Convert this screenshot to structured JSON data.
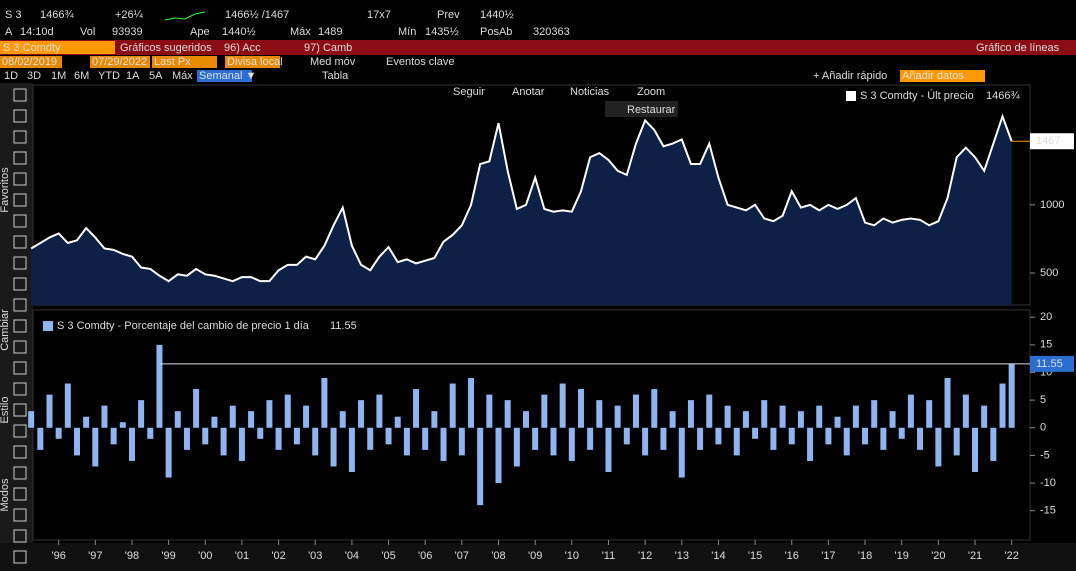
{
  "header": {
    "row1": [
      "S 3",
      "1466¾",
      "+26¼",
      "1466½ /1467",
      "17x7",
      "Prev",
      "1440½"
    ],
    "row2": [
      "A",
      "14:10d",
      "Vol",
      "93939",
      "Ape",
      "1440½",
      "Máx",
      "1489",
      "Mín",
      "1435½",
      "PosAb",
      "320363"
    ],
    "menu": [
      "S 3 Comdty",
      "Gráficos sugeridos",
      "96) Acc",
      "97) Camb",
      "Gráfico de líneas"
    ],
    "settings": [
      "08/02/2019",
      "07/29/2022",
      "Last Px",
      "Divisa local",
      "Med móv",
      "Eventos clave"
    ],
    "periods": [
      "1D",
      "3D",
      "1M",
      "6M",
      "YTD",
      "1A",
      "5A",
      "Máx",
      "Semanal ▼",
      "Tabla",
      "+ Añadir rápido",
      "Añadir datos"
    ],
    "tools": [
      "Seguir",
      "Anotar",
      "Noticias",
      "Zoom",
      "Restaurar"
    ],
    "side": [
      "Favoritos",
      "Cambiar",
      "Estilo",
      "Modos"
    ]
  },
  "chart_data": [
    {
      "type": "line",
      "legend_value": "1466¾",
      "xlim": [
        1995.8,
        2023
      ],
      "ylim": [
        265,
        1880
      ],
      "yticks": [
        500,
        1000
      ],
      "x": [
        1995.75,
        1996,
        1996.25,
        1996.5,
        1996.75,
        1997,
        1997.25,
        1997.5,
        1997.75,
        1998,
        1998.25,
        1998.5,
        1998.75,
        1999,
        1999.25,
        1999.5,
        1999.75,
        2000,
        2000.25,
        2000.5,
        2000.75,
        2001,
        2001.25,
        2001.5,
        2001.75,
        2002,
        2002.25,
        2002.5,
        2002.75,
        2003,
        2003.25,
        2003.5,
        2003.75,
        2004,
        2004.25,
        2004.5,
        2004.75,
        2005,
        2005.25,
        2005.5,
        2005.75,
        2006,
        2006.25,
        2006.5,
        2006.75,
        2007,
        2007.25,
        2007.5,
        2007.75,
        2008,
        2008.25,
        2008.5,
        2008.75,
        2009,
        2009.25,
        2009.5,
        2009.75,
        2010,
        2010.25,
        2010.5,
        2010.75,
        2011,
        2011.25,
        2011.5,
        2011.75,
        2012,
        2012.25,
        2012.5,
        2012.75,
        2013,
        2013.25,
        2013.5,
        2013.75,
        2014,
        2014.25,
        2014.5,
        2014.75,
        2015,
        2015.25,
        2015.5,
        2015.75,
        2016,
        2016.25,
        2016.5,
        2016.75,
        2017,
        2017.25,
        2017.5,
        2017.75,
        2018,
        2018.25,
        2018.5,
        2018.75,
        2019,
        2019.25,
        2019.5,
        2019.75,
        2020,
        2020.25,
        2020.5,
        2020.75,
        2021,
        2021.25,
        2021.5,
        2021.75,
        2022,
        2022.25,
        2022.5
      ],
      "series": [
        {
          "name": "S 3 Comdty - Últ precio",
          "color": "#ffffff",
          "values": [
            680,
            720,
            760,
            790,
            720,
            740,
            830,
            760,
            680,
            670,
            640,
            620,
            540,
            530,
            480,
            440,
            490,
            480,
            530,
            490,
            480,
            460,
            440,
            470,
            470,
            440,
            440,
            520,
            560,
            560,
            620,
            600,
            700,
            850,
            980,
            700,
            560,
            520,
            620,
            690,
            580,
            600,
            570,
            590,
            610,
            730,
            780,
            850,
            1000,
            1300,
            1320,
            1600,
            1250,
            970,
            1000,
            1200,
            970,
            950,
            960,
            950,
            1100,
            1350,
            1380,
            1330,
            1250,
            1220,
            1450,
            1620,
            1550,
            1430,
            1450,
            1480,
            1300,
            1300,
            1450,
            1200,
            1000,
            980,
            960,
            1000,
            900,
            880,
            920,
            1100,
            980,
            1000,
            960,
            1000,
            970,
            1000,
            1050,
            870,
            850,
            900,
            870,
            890,
            900,
            890,
            850,
            880,
            1050,
            1350,
            1420,
            1350,
            1250,
            1450,
            1650,
            1467
          ]
        }
      ]
    },
    {
      "type": "bar",
      "xlim": [
        1995.8,
        2023
      ],
      "ylim": [
        -20.3,
        21.3
      ],
      "yticks": [
        -15,
        -10,
        -5,
        0,
        5,
        10,
        15,
        20
      ],
      "xticks": [
        {
          "value": 1996.5,
          "label": "'96"
        },
        {
          "value": 1997.5,
          "label": "'97"
        },
        {
          "value": 1998.5,
          "label": "'98"
        },
        {
          "value": 1999.5,
          "label": "'99"
        },
        {
          "value": 2000.5,
          "label": "'00"
        },
        {
          "value": 2001.5,
          "label": "'01"
        },
        {
          "value": 2002.5,
          "label": "'02"
        },
        {
          "value": 2003.5,
          "label": "'03"
        },
        {
          "value": 2004.5,
          "label": "'04"
        },
        {
          "value": 2005.5,
          "label": "'05"
        },
        {
          "value": 2006.5,
          "label": "'06"
        },
        {
          "value": 2007.5,
          "label": "'07"
        },
        {
          "value": 2008.5,
          "label": "'08"
        },
        {
          "value": 2009.5,
          "label": "'09"
        },
        {
          "value": 2010.5,
          "label": "'10"
        },
        {
          "value": 2011.5,
          "label": "'11"
        },
        {
          "value": 2012.5,
          "label": "'12"
        },
        {
          "value": 2013.5,
          "label": "'13"
        },
        {
          "value": 2014.5,
          "label": "'14"
        },
        {
          "value": 2015.5,
          "label": "'15"
        },
        {
          "value": 2016.5,
          "label": "'16"
        },
        {
          "value": 2017.5,
          "label": "'17"
        },
        {
          "value": 2018.5,
          "label": "'18"
        },
        {
          "value": 2019.5,
          "label": "'19"
        },
        {
          "value": 2020.5,
          "label": "'20"
        },
        {
          "value": 2021.5,
          "label": "'21"
        },
        {
          "value": 2022.5,
          "label": "'22"
        }
      ],
      "x": [
        1995.75,
        1996,
        1996.25,
        1996.5,
        1996.75,
        1997,
        1997.25,
        1997.5,
        1997.75,
        1998,
        1998.25,
        1998.5,
        1998.75,
        1999,
        1999.25,
        1999.5,
        1999.75,
        2000,
        2000.25,
        2000.5,
        2000.75,
        2001,
        2001.25,
        2001.5,
        2001.75,
        2002,
        2002.25,
        2002.5,
        2002.75,
        2003,
        2003.25,
        2003.5,
        2003.75,
        2004,
        2004.25,
        2004.5,
        2004.75,
        2005,
        2005.25,
        2005.5,
        2005.75,
        2006,
        2006.25,
        2006.5,
        2006.75,
        2007,
        2007.25,
        2007.5,
        2007.75,
        2008,
        2008.25,
        2008.5,
        2008.75,
        2009,
        2009.25,
        2009.5,
        2009.75,
        2010,
        2010.25,
        2010.5,
        2010.75,
        2011,
        2011.25,
        2011.5,
        2011.75,
        2012,
        2012.25,
        2012.5,
        2012.75,
        2013,
        2013.25,
        2013.5,
        2013.75,
        2014,
        2014.25,
        2014.5,
        2014.75,
        2015,
        2015.25,
        2015.5,
        2015.75,
        2016,
        2016.25,
        2016.5,
        2016.75,
        2017,
        2017.25,
        2017.5,
        2017.75,
        2018,
        2018.25,
        2018.5,
        2018.75,
        2019,
        2019.25,
        2019.5,
        2019.75,
        2020,
        2020.25,
        2020.5,
        2020.75,
        2021,
        2021.25,
        2021.5,
        2021.75,
        2022,
        2022.25,
        2022.5
      ],
      "series": [
        {
          "name": "S 3 Comdty - Porcentaje del cambio de precio 1 día",
          "color": "#8fb4f0",
          "values": [
            3,
            -4,
            6,
            -2,
            8,
            -5,
            2,
            -7,
            4,
            -3,
            1,
            -6,
            5,
            -2,
            15,
            -9,
            3,
            -4,
            7,
            -3,
            2,
            -5,
            4,
            -6,
            3,
            -2,
            5,
            -4,
            6,
            -3,
            4,
            -5,
            9,
            -7,
            3,
            -8,
            5,
            -4,
            6,
            -3,
            2,
            -5,
            7,
            -4,
            3,
            -6,
            8,
            -5,
            9,
            -14,
            6,
            -10,
            5,
            -7,
            3,
            -4,
            6,
            -5,
            8,
            -6,
            7,
            -4,
            5,
            -8,
            4,
            -3,
            6,
            -5,
            7,
            -4,
            3,
            -9,
            5,
            -4,
            6,
            -3,
            4,
            -5,
            3,
            -2,
            5,
            -4,
            4,
            -3,
            3,
            -6,
            4,
            -3,
            2,
            -5,
            4,
            -3,
            5,
            -4,
            3,
            -2,
            6,
            -4,
            5,
            -7,
            9,
            -5,
            6,
            -8,
            4,
            -6,
            8,
            11.55
          ]
        }
      ]
    }
  ]
}
